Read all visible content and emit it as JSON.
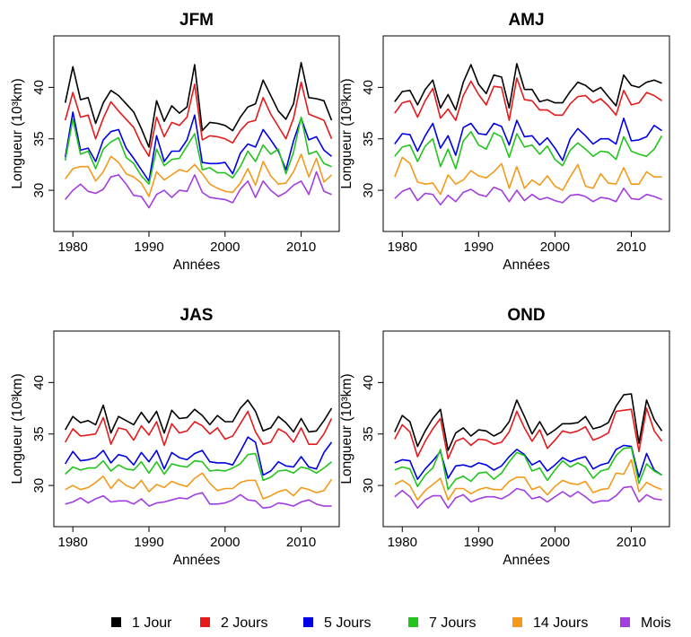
{
  "chart_data": {
    "type": "line",
    "x_range": [
      1979,
      2014
    ],
    "y_ticks": [
      30,
      35,
      40
    ],
    "x_ticks": [
      1980,
      1990,
      2000,
      2010
    ],
    "xlim": [
      1977.5,
      2015
    ],
    "ylim": [
      26,
      45
    ],
    "xlabel": "Années",
    "ylabel": "Longueur (10³km)",
    "grid": false,
    "legend_position": "bottom",
    "series_meta": [
      {
        "name": "1 Jour",
        "color": "#000000"
      },
      {
        "name": "2 Jours",
        "color": "#e41a1c"
      },
      {
        "name": "5 Jours",
        "color": "#0000e6"
      },
      {
        "name": "7 Jours",
        "color": "#22c41d"
      },
      {
        "name": "14 Jours",
        "color": "#f39a1a"
      },
      {
        "name": "Mois",
        "color": "#a23ee0"
      }
    ],
    "panels": [
      {
        "title": "JFM",
        "series": [
          [
            38.5,
            42.0,
            38.8,
            39.0,
            36.5,
            38.5,
            39.7,
            39.2,
            38.4,
            37.6,
            36.0,
            34.2,
            38.7,
            36.7,
            38.2,
            37.5,
            38.1,
            42.2,
            35.8,
            36.6,
            36.5,
            36.3,
            35.8,
            37.1,
            38.1,
            38.4,
            40.7,
            39.2,
            37.7,
            36.9,
            38.4,
            42.4,
            39.0,
            38.9,
            38.7,
            36.8
          ],
          [
            36.8,
            39.5,
            37.1,
            37.3,
            35.0,
            37.0,
            38.6,
            37.7,
            36.9,
            36.1,
            34.5,
            33.3,
            37.1,
            35.2,
            36.6,
            36.3,
            37.1,
            40.3,
            34.9,
            35.3,
            35.2,
            35.0,
            34.6,
            35.8,
            36.6,
            36.8,
            39.0,
            37.4,
            36.2,
            35.0,
            37.0,
            40.5,
            37.4,
            37.1,
            36.8,
            35.0
          ],
          [
            33.2,
            37.6,
            33.9,
            34.1,
            32.8,
            34.9,
            35.7,
            35.9,
            34.1,
            33.1,
            32.0,
            30.9,
            35.3,
            32.8,
            33.8,
            33.8,
            34.9,
            37.3,
            32.7,
            32.6,
            32.6,
            32.7,
            31.6,
            33.6,
            34.5,
            34.2,
            35.9,
            34.9,
            33.8,
            32.0,
            34.8,
            37.0,
            34.9,
            35.2,
            33.9,
            33.3
          ],
          [
            32.9,
            36.9,
            33.5,
            33.8,
            32.1,
            34.0,
            34.7,
            35.1,
            33.2,
            32.6,
            31.4,
            30.6,
            34.0,
            32.4,
            33.0,
            33.1,
            34.3,
            35.5,
            32.0,
            32.2,
            31.7,
            31.7,
            31.2,
            32.3,
            33.8,
            32.8,
            34.4,
            33.5,
            34.0,
            31.6,
            33.7,
            37.1,
            33.5,
            33.8,
            32.6,
            32.3
          ],
          [
            31.1,
            32.1,
            32.3,
            32.3,
            30.9,
            31.8,
            33.3,
            32.7,
            31.6,
            31.3,
            30.7,
            29.4,
            31.8,
            31.0,
            31.5,
            32.0,
            31.8,
            32.5,
            31.6,
            30.6,
            30.2,
            29.9,
            29.8,
            30.7,
            32.1,
            30.5,
            32.8,
            31.4,
            30.6,
            30.7,
            31.8,
            33.5,
            31.3,
            33.1,
            30.8,
            31.5
          ],
          [
            29.1,
            30.0,
            30.6,
            29.9,
            29.7,
            30.1,
            31.3,
            31.5,
            30.6,
            29.5,
            29.4,
            28.3,
            29.6,
            30.0,
            29.3,
            30.0,
            29.9,
            31.5,
            29.8,
            29.3,
            29.2,
            29.1,
            28.8,
            30.1,
            30.9,
            29.3,
            30.9,
            30.0,
            29.4,
            29.8,
            30.5,
            30.9,
            29.6,
            31.8,
            29.9,
            29.6
          ]
        ]
      },
      {
        "title": "AMJ",
        "series": [
          [
            38.6,
            39.6,
            39.7,
            38.3,
            39.8,
            40.7,
            38.0,
            39.3,
            37.8,
            40.5,
            42.2,
            40.3,
            39.4,
            41.2,
            41.0,
            38.0,
            42.3,
            39.8,
            39.8,
            38.6,
            38.8,
            38.5,
            38.5,
            39.6,
            40.5,
            40.2,
            39.6,
            40.0,
            39.1,
            38.2,
            41.2,
            40.2,
            40.0,
            40.5,
            40.7,
            40.4
          ],
          [
            37.5,
            38.5,
            38.7,
            37.1,
            38.7,
            39.9,
            37.0,
            37.9,
            36.8,
            39.2,
            40.6,
            39.3,
            38.3,
            40.1,
            40.0,
            36.8,
            40.9,
            38.8,
            38.7,
            37.8,
            37.8,
            37.3,
            37.3,
            38.4,
            39.1,
            39.2,
            38.5,
            38.9,
            38.2,
            37.3,
            39.7,
            38.3,
            38.5,
            39.5,
            39.2,
            38.7
          ],
          [
            34.5,
            35.5,
            35.4,
            33.8,
            35.3,
            36.5,
            34.1,
            35.3,
            33.4,
            36.1,
            36.5,
            35.5,
            35.4,
            36.5,
            36.2,
            34.4,
            36.8,
            35.2,
            35.3,
            34.4,
            35.1,
            34.1,
            32.9,
            35.0,
            36.0,
            35.3,
            34.5,
            35.0,
            35.0,
            34.5,
            37.0,
            34.8,
            34.9,
            35.2,
            36.3,
            35.8
          ],
          [
            33.3,
            34.2,
            34.4,
            32.8,
            34.3,
            35.0,
            32.3,
            34.0,
            32.1,
            34.8,
            35.7,
            34.4,
            34.0,
            35.6,
            35.2,
            33.2,
            35.5,
            34.2,
            34.4,
            33.5,
            34.3,
            33.0,
            32.4,
            33.9,
            34.6,
            34.0,
            33.3,
            33.8,
            33.7,
            33.0,
            35.2,
            33.8,
            33.5,
            33.3,
            34.0,
            35.3
          ],
          [
            31.3,
            33.2,
            32.6,
            30.8,
            30.6,
            30.7,
            29.6,
            31.5,
            30.6,
            31.0,
            31.9,
            31.4,
            31.2,
            31.8,
            32.6,
            30.2,
            32.3,
            30.2,
            31.0,
            30.5,
            31.4,
            30.4,
            30.0,
            31.3,
            32.5,
            30.4,
            30.2,
            31.6,
            30.7,
            30.6,
            32.2,
            30.6,
            30.6,
            31.8,
            31.3,
            31.3
          ],
          [
            29.2,
            29.9,
            30.2,
            29.0,
            29.7,
            29.6,
            28.6,
            29.5,
            28.9,
            29.8,
            30.1,
            29.6,
            29.4,
            30.3,
            30.0,
            28.9,
            30.0,
            29.0,
            29.6,
            29.1,
            29.3,
            29.0,
            28.8,
            29.5,
            29.6,
            29.4,
            28.9,
            29.3,
            29.2,
            28.9,
            30.2,
            29.2,
            29.1,
            29.6,
            29.4,
            29.1
          ]
        ]
      },
      {
        "title": "JAS",
        "series": [
          [
            35.4,
            36.7,
            36.1,
            36.3,
            35.9,
            37.8,
            35.1,
            36.7,
            36.3,
            35.9,
            37.1,
            36.1,
            37.2,
            35.1,
            37.3,
            36.5,
            36.6,
            37.4,
            36.8,
            35.9,
            36.8,
            36.2,
            36.2,
            37.5,
            38.3,
            37.2,
            35.3,
            35.6,
            36.7,
            36.1,
            35.2,
            36.5,
            35.2,
            35.3,
            36.3,
            37.5
          ],
          [
            34.2,
            35.5,
            34.8,
            34.9,
            35.0,
            36.6,
            34.0,
            35.6,
            35.4,
            34.4,
            35.8,
            34.9,
            36.2,
            33.9,
            36.0,
            35.1,
            35.3,
            36.2,
            35.8,
            35.0,
            35.6,
            34.5,
            34.8,
            36.0,
            37.2,
            35.2,
            34.0,
            34.2,
            35.5,
            35.1,
            34.2,
            35.6,
            34.0,
            34.0,
            35.0,
            36.5
          ],
          [
            32.1,
            33.3,
            32.4,
            32.5,
            32.7,
            33.4,
            32.2,
            33.0,
            32.8,
            32.0,
            33.2,
            32.3,
            33.4,
            31.6,
            33.2,
            32.7,
            32.5,
            33.1,
            33.4,
            32.3,
            32.2,
            32.2,
            32.0,
            33.3,
            34.7,
            34.2,
            31.0,
            31.4,
            32.3,
            31.9,
            31.8,
            32.8,
            31.8,
            31.6,
            33.2,
            34.2
          ],
          [
            31.1,
            31.8,
            31.5,
            31.7,
            31.7,
            32.4,
            31.4,
            32.0,
            31.6,
            31.5,
            32.3,
            31.2,
            32.3,
            31.1,
            32.1,
            31.9,
            31.8,
            32.4,
            32.3,
            31.4,
            31.5,
            31.4,
            31.7,
            32.1,
            33.0,
            33.1,
            30.5,
            30.8,
            31.4,
            31.5,
            31.2,
            31.8,
            31.6,
            31.2,
            31.7,
            32.3
          ],
          [
            29.6,
            30.0,
            29.6,
            29.8,
            30.3,
            30.9,
            29.7,
            30.6,
            30.0,
            29.7,
            30.5,
            29.4,
            30.1,
            29.8,
            30.4,
            30.1,
            29.9,
            30.7,
            31.2,
            30.2,
            29.5,
            29.7,
            29.7,
            30.3,
            30.5,
            30.5,
            28.7,
            29.0,
            29.4,
            29.6,
            29.0,
            29.8,
            29.6,
            29.3,
            29.5,
            30.6
          ],
          [
            28.2,
            28.4,
            28.8,
            28.3,
            28.7,
            29.0,
            28.4,
            28.5,
            28.5,
            28.2,
            28.7,
            28.0,
            28.3,
            28.4,
            28.6,
            28.8,
            28.7,
            29.1,
            29.3,
            28.2,
            28.2,
            28.3,
            28.6,
            29.1,
            28.6,
            28.5,
            27.8,
            27.9,
            28.3,
            28.2,
            28.0,
            28.4,
            28.6,
            28.2,
            28.0,
            28.0
          ]
        ]
      },
      {
        "title": "OND",
        "series": [
          [
            35.2,
            36.8,
            36.2,
            33.8,
            35.3,
            36.5,
            37.4,
            33.4,
            35.1,
            35.6,
            34.8,
            35.4,
            35.3,
            34.8,
            35.2,
            36.2,
            38.3,
            36.7,
            35.0,
            36.2,
            34.9,
            35.4,
            36.0,
            36.0,
            36.1,
            36.7,
            35.5,
            35.7,
            36.1,
            37.7,
            38.8,
            38.9,
            34.1,
            38.3,
            36.4,
            35.3
          ],
          [
            34.5,
            35.9,
            35.2,
            32.8,
            34.3,
            35.5,
            36.5,
            32.6,
            34.3,
            34.6,
            33.9,
            34.5,
            34.4,
            34.0,
            34.2,
            35.2,
            37.2,
            35.6,
            34.3,
            35.4,
            33.6,
            34.4,
            35.3,
            35.1,
            35.3,
            35.7,
            34.4,
            34.7,
            35.1,
            37.2,
            37.3,
            37.4,
            33.3,
            37.5,
            35.3,
            34.3
          ],
          [
            32.2,
            32.5,
            32.4,
            30.6,
            31.6,
            32.4,
            33.3,
            30.7,
            31.9,
            32.0,
            31.8,
            32.2,
            32.0,
            31.5,
            31.9,
            32.8,
            33.5,
            33.0,
            32.0,
            32.4,
            31.4,
            32.0,
            32.7,
            32.3,
            32.6,
            32.8,
            31.6,
            32.0,
            32.2,
            33.5,
            33.9,
            33.8,
            30.8,
            33.1,
            31.5,
            31.0
          ],
          [
            31.5,
            31.8,
            31.6,
            29.9,
            31.0,
            31.7,
            33.5,
            29.6,
            30.6,
            30.9,
            30.4,
            31.2,
            31.3,
            30.6,
            31.2,
            32.3,
            33.2,
            32.9,
            31.4,
            31.7,
            30.5,
            31.5,
            32.4,
            31.8,
            32.2,
            31.8,
            30.7,
            31.4,
            31.6,
            32.9,
            33.6,
            33.7,
            30.2,
            32.1,
            31.4,
            31.0
          ],
          [
            30.1,
            30.5,
            30.0,
            28.6,
            29.5,
            30.1,
            30.7,
            28.6,
            29.7,
            29.7,
            29.2,
            29.6,
            29.8,
            29.6,
            29.6,
            30.4,
            30.8,
            30.8,
            29.6,
            29.9,
            29.1,
            29.9,
            30.5,
            30.2,
            30.1,
            30.4,
            29.3,
            29.6,
            29.7,
            31.2,
            31.1,
            32.5,
            29.4,
            30.3,
            29.9,
            29.6
          ],
          [
            28.9,
            29.5,
            28.9,
            27.8,
            28.6,
            29.0,
            29.0,
            27.8,
            28.8,
            29.1,
            28.4,
            28.7,
            28.9,
            28.9,
            28.7,
            29.1,
            29.7,
            29.5,
            28.7,
            28.9,
            28.4,
            28.9,
            29.4,
            28.9,
            29.4,
            28.9,
            28.3,
            28.5,
            28.5,
            29.0,
            29.8,
            29.9,
            28.4,
            29.1,
            28.7,
            28.6
          ]
        ]
      }
    ]
  }
}
